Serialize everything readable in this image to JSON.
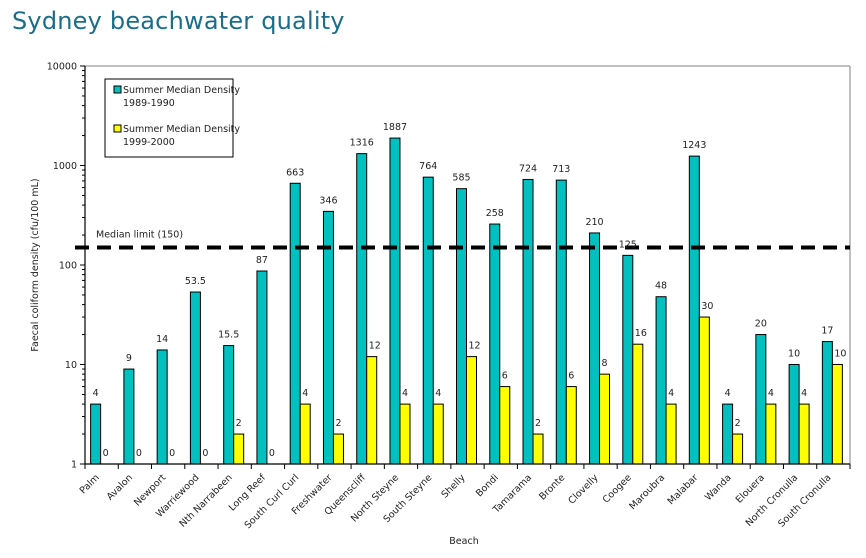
{
  "page": {
    "title": "Sydney beachwater quality"
  },
  "colors": {
    "series1": "#00c0c0",
    "series2": "#ffff00",
    "title": "#1a6e8a",
    "median_line": "#000000"
  },
  "chart_data": {
    "type": "bar",
    "title": "Sydney beachwater quality",
    "xlabel": "Beach",
    "ylabel": "Faecal coliform density (cfu/100 mL)",
    "yscale": "log",
    "ylim": [
      1,
      10000
    ],
    "yticks": [
      1,
      10,
      100,
      1000,
      10000
    ],
    "ytick_labels": [
      "1",
      "10",
      "100",
      "1000",
      "10000"
    ],
    "grid": false,
    "legend_position": "top-left",
    "categories": [
      "Palm",
      "Avalon",
      "Newport",
      "Warriewood",
      "Nth Narrabeen",
      "Long Reef",
      "South Curl Curl",
      "Freshwater",
      "Queenscliff",
      "North Steyne",
      "South Steyne",
      "Shelly",
      "Bondi",
      "Tamarama",
      "Bronte",
      "Clovelly",
      "Coogee",
      "Maroubra",
      "Malabar",
      "Wanda",
      "Elouera",
      "North Cronulla",
      "South Cronulla"
    ],
    "series": [
      {
        "name": "Summer Median Density 1989-1990",
        "legend_lines": [
          "Summer Median Density",
          "1989-1990"
        ],
        "values": [
          4,
          9,
          14,
          53.5,
          15.5,
          87,
          663,
          346,
          1316,
          1887,
          764,
          585,
          258,
          724,
          713,
          210,
          125,
          48,
          1243,
          4,
          20,
          10,
          17
        ],
        "labels": [
          "4",
          "9",
          "14",
          "53.5",
          "15.5",
          "87",
          "663",
          "346",
          "1316",
          "1887",
          "764",
          "585",
          "258",
          "724",
          "713",
          "210",
          "125",
          "48",
          "1243",
          "4",
          "20",
          "10",
          "17"
        ]
      },
      {
        "name": "Summer Median Density 1999-2000",
        "legend_lines": [
          "Summer Median Density",
          "1999-2000"
        ],
        "values": [
          0,
          0,
          0,
          0,
          2,
          0,
          4,
          2,
          12,
          4,
          4,
          12,
          6,
          2,
          6,
          8,
          16,
          4,
          30,
          2,
          4,
          4,
          10
        ],
        "labels": [
          "0",
          "0",
          "0",
          "0",
          "2",
          "0",
          "4",
          "2",
          "12",
          "4",
          "4",
          "12",
          "6",
          "2",
          "6",
          "8",
          "16",
          "4",
          "30",
          "2",
          "4",
          "4",
          "10"
        ]
      }
    ],
    "annotations": [
      {
        "type": "hline",
        "y": 150,
        "label": "Median limit (150)",
        "style": "dashed"
      }
    ]
  }
}
